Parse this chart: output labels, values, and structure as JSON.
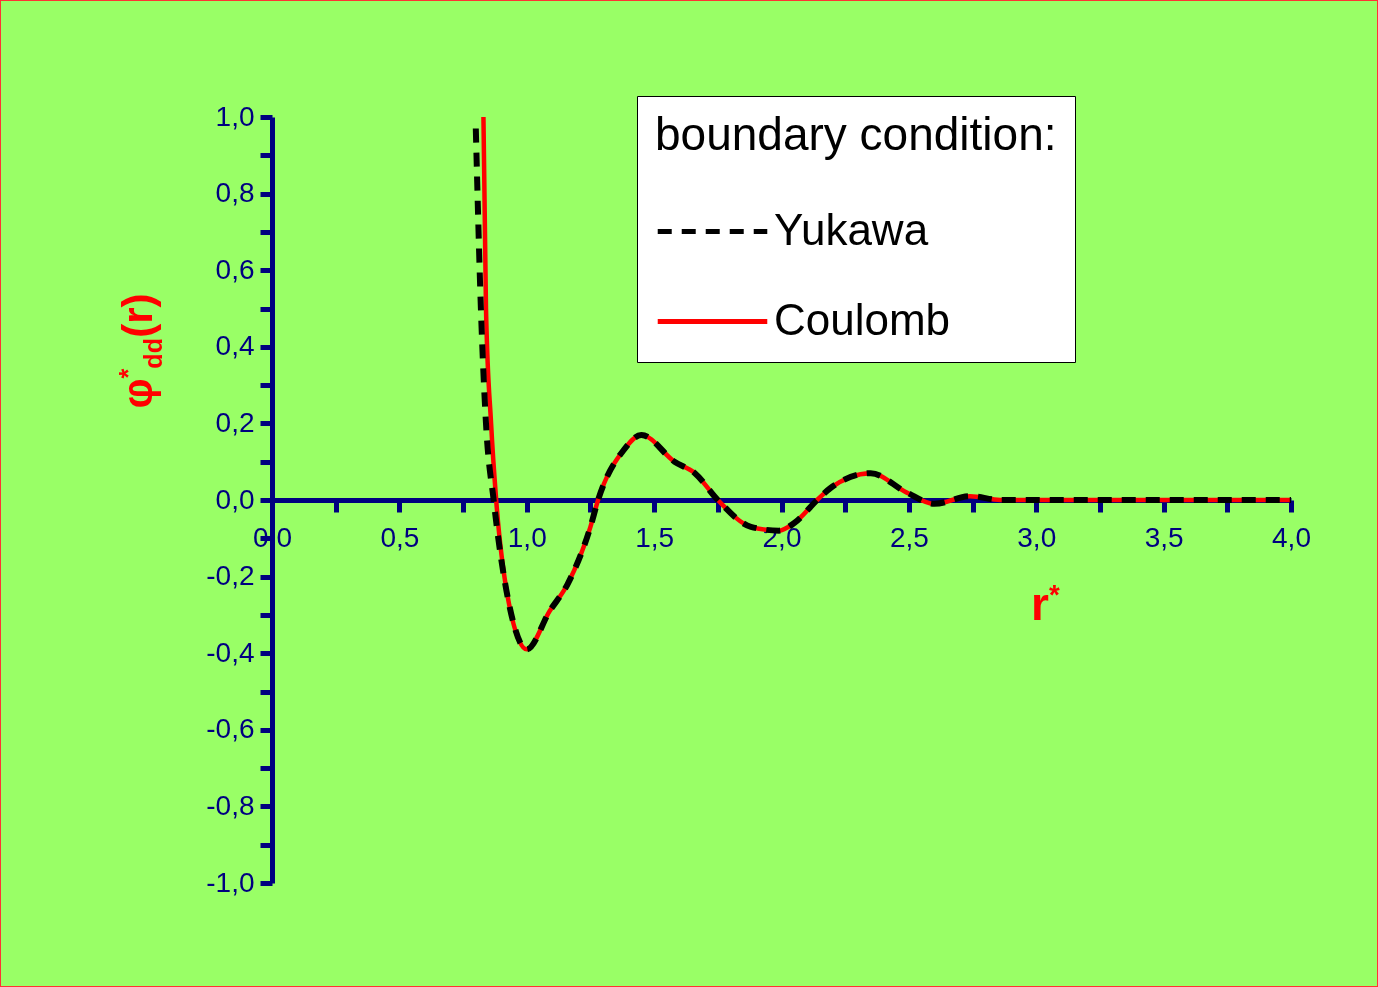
{
  "chart_data": {
    "type": "line",
    "xlabel": "r$^{*}$",
    "ylabel": "φ$^{*}$$_{dd}$(r)",
    "legend_title": "boundary condition:",
    "legend": "top right",
    "xlim": [
      0,
      4
    ],
    "ylim": [
      -1,
      1
    ],
    "xticks": [
      {
        "value": 0,
        "label": "0,0"
      },
      {
        "value": 0.25,
        "label": null
      },
      {
        "value": 0.5,
        "label": "0,5"
      },
      {
        "value": 0.75,
        "label": null
      },
      {
        "value": 1,
        "label": "1,0"
      },
      {
        "value": 1.25,
        "label": null
      },
      {
        "value": 1.5,
        "label": "1,5"
      },
      {
        "value": 1.75,
        "label": null
      },
      {
        "value": 2,
        "label": "2,0"
      },
      {
        "value": 2.25,
        "label": null
      },
      {
        "value": 2.5,
        "label": "2,5"
      },
      {
        "value": 2.75,
        "label": null
      },
      {
        "value": 3,
        "label": "3,0"
      },
      {
        "value": 3.25,
        "label": null
      },
      {
        "value": 3.5,
        "label": "3,5"
      },
      {
        "value": 3.75,
        "label": null
      },
      {
        "value": 4,
        "label": "4,0"
      }
    ],
    "yticks": [
      {
        "value": -1,
        "label": "-1,0"
      },
      {
        "value": -0.9,
        "label": null
      },
      {
        "value": -0.8,
        "label": "-0,8"
      },
      {
        "value": -0.7,
        "label": null
      },
      {
        "value": -0.6,
        "label": "-0,6"
      },
      {
        "value": -0.5,
        "label": null
      },
      {
        "value": -0.4,
        "label": "-0,4"
      },
      {
        "value": -0.3,
        "label": null
      },
      {
        "value": -0.2,
        "label": "-0,2"
      },
      {
        "value": -0.1,
        "label": null
      },
      {
        "value": 0,
        "label": "0,0"
      },
      {
        "value": 0.1,
        "label": null
      },
      {
        "value": 0.2,
        "label": "0,2"
      },
      {
        "value": 0.3,
        "label": null
      },
      {
        "value": 0.4,
        "label": "0,4"
      },
      {
        "value": 0.5,
        "label": null
      },
      {
        "value": 0.6,
        "label": "0,6"
      },
      {
        "value": 0.7,
        "label": null
      },
      {
        "value": 0.8,
        "label": "0,8"
      },
      {
        "value": 0.9,
        "label": null
      },
      {
        "value": 1,
        "label": "1,0"
      }
    ],
    "series": [
      {
        "name": "Yukawa",
        "color": "#000000",
        "line_style": "dashed",
        "x": [
          0.8,
          0.82,
          0.84,
          0.87,
          0.93,
          1.0,
          1.09,
          1.16,
          1.25,
          1.28,
          1.38,
          1.45,
          1.58,
          1.66,
          1.75,
          1.88,
          1.99,
          2.05,
          2.14,
          2.19,
          2.35,
          2.49,
          2.6,
          2.74,
          2.86,
          4.0
        ],
        "values": [
          0.97,
          0.5,
          0.2,
          0,
          -0.27,
          -0.39,
          -0.29,
          -0.22,
          -0.07,
          0,
          0.13,
          0.17,
          0.1,
          0.07,
          0,
          -0.07,
          -0.08,
          -0.06,
          0,
          0.03,
          0.07,
          0.02,
          -0.01,
          0.01,
          0,
          0
        ]
      },
      {
        "name": "Coulomb",
        "color": "#ff0000",
        "line_style": "solid",
        "x": [
          0.83,
          0.84,
          0.86,
          0.88,
          0.93,
          1.0,
          1.09,
          1.16,
          1.25,
          1.28,
          1.38,
          1.45,
          1.58,
          1.66,
          1.75,
          1.88,
          1.99,
          2.05,
          2.14,
          2.19,
          2.35,
          2.49,
          2.6,
          2.74,
          2.86,
          4.0
        ],
        "values": [
          1.0,
          0.5,
          0.2,
          0,
          -0.27,
          -0.39,
          -0.29,
          -0.22,
          -0.07,
          0,
          0.13,
          0.17,
          0.1,
          0.07,
          0,
          -0.07,
          -0.08,
          -0.06,
          0,
          0.03,
          0.07,
          0.02,
          -0.01,
          0.01,
          0,
          0
        ]
      }
    ]
  }
}
